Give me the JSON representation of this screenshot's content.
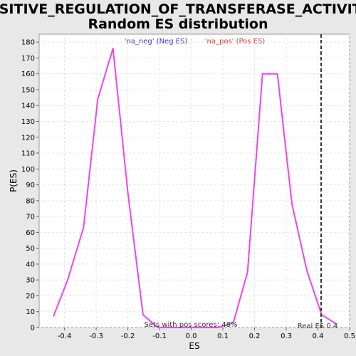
{
  "chart_data": {
    "type": "line",
    "title_line1": "POSITIVE_REGULATION_OF_TRANSFERASE_ACTIVITY:",
    "title_line2": "Random ES distribution",
    "xlabel": "ES",
    "ylabel": "P(ES)",
    "xlim": [
      -0.48,
      0.5
    ],
    "ylim": [
      0,
      185
    ],
    "x_ticks": [
      -0.4,
      -0.3,
      -0.2,
      -0.1,
      0.0,
      0.1,
      0.2,
      0.3,
      0.4,
      0.5
    ],
    "x_tick_labels": [
      "-0.4",
      "-0.3",
      "-0.2",
      "-0.1",
      "0.0",
      "0.1",
      "0.2",
      "0.3",
      "0.4",
      "0.5"
    ],
    "y_ticks": [
      0,
      10,
      20,
      30,
      40,
      50,
      60,
      70,
      80,
      90,
      100,
      110,
      120,
      130,
      140,
      150,
      160,
      170,
      180
    ],
    "y_tick_labels": [
      "0",
      "10",
      "20",
      "30",
      "40",
      "50",
      "60",
      "70",
      "80",
      "90",
      "100",
      "110",
      "120",
      "130",
      "140",
      "150",
      "160",
      "170",
      "180"
    ],
    "grid": true,
    "legend": [
      {
        "label": "'na_neg' (Neg ES)",
        "color": "#3b3bcc"
      },
      {
        "label": "'na_pos' (Pos ES)",
        "color": "#e03b3b"
      }
    ],
    "series": [
      {
        "color": "#ee44ee",
        "x": [
          -0.435,
          -0.39,
          -0.34,
          -0.295,
          -0.247,
          -0.2,
          -0.152,
          -0.105,
          -0.06,
          -0.01,
          0.04,
          0.085,
          0.133,
          0.178,
          0.225,
          0.272,
          0.318,
          0.365,
          0.412,
          0.46
        ],
        "y": [
          7,
          30,
          63,
          144,
          176,
          85,
          8,
          0,
          0,
          0,
          0,
          0,
          3,
          35,
          160,
          160,
          78,
          36,
          8,
          2
        ]
      }
    ],
    "real_es": 0.41,
    "real_es_label": "Real ES 0.4",
    "pos_scores_label": "Sets with pos scores: 48%"
  }
}
